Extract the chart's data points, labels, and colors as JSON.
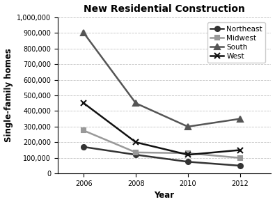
{
  "title": "New Residential Construction",
  "xlabel": "Year",
  "ylabel": "Single-family homes",
  "years": [
    2006,
    2008,
    2010,
    2012
  ],
  "series": {
    "Northeast": {
      "values": [
        170000,
        120000,
        75000,
        50000
      ],
      "color": "#333333",
      "marker": "o",
      "markersize": 5,
      "linewidth": 1.8
    },
    "Midwest": {
      "values": [
        275000,
        135000,
        130000,
        100000
      ],
      "color": "#999999",
      "marker": "s",
      "markersize": 5,
      "linewidth": 1.8
    },
    "South": {
      "values": [
        900000,
        450000,
        300000,
        350000
      ],
      "color": "#555555",
      "marker": "^",
      "markersize": 6,
      "linewidth": 1.8
    },
    "West": {
      "values": [
        450000,
        200000,
        120000,
        150000
      ],
      "color": "#111111",
      "marker": "x",
      "markersize": 6,
      "linewidth": 1.8
    }
  },
  "ylim": [
    0,
    1000000
  ],
  "yticks": [
    0,
    100000,
    200000,
    300000,
    400000,
    500000,
    600000,
    700000,
    800000,
    900000,
    1000000
  ],
  "ytick_labels": [
    "0",
    "100,000",
    "200,000",
    "300,000",
    "400,000",
    "500,000",
    "600,000",
    "700,000",
    "800,000",
    "900,000",
    "1,000,000"
  ],
  "xticks": [
    2006,
    2008,
    2010,
    2012
  ],
  "grid_color": "#bbbbbb",
  "grid_style": "--",
  "background_color": "#ffffff",
  "title_fontsize": 10,
  "axis_label_fontsize": 8.5,
  "tick_fontsize": 7,
  "legend_fontsize": 7.5
}
